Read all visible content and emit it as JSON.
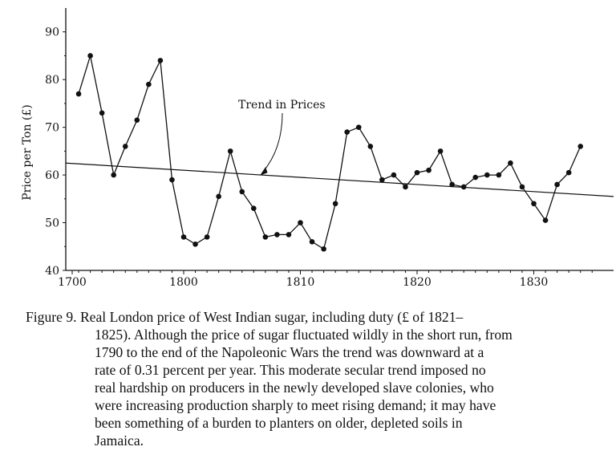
{
  "chart_data": {
    "type": "line",
    "title": "",
    "xlabel": "",
    "ylabel": "Price per Ton (£)",
    "xlim": [
      1700,
      1835
    ],
    "ylim": [
      40,
      95
    ],
    "xticks": [
      1700,
      1800,
      1810,
      1820,
      1830
    ],
    "xtick_labels": [
      "1700",
      "1800",
      "1810",
      "1820",
      "1830"
    ],
    "yticks": [
      40,
      50,
      60,
      70,
      80,
      90
    ],
    "ytick_labels": [
      "40",
      "50",
      "60",
      "70",
      "80",
      "90"
    ],
    "grid": false,
    "series": [
      {
        "name": "",
        "x": [
          1791,
          1792,
          1793,
          1794,
          1795,
          1796,
          1797,
          1798,
          1799,
          1800,
          1801,
          1802,
          1803,
          1804,
          1805,
          1806,
          1807,
          1808,
          1809,
          1810,
          1811,
          1812,
          1813,
          1814,
          1815,
          1816,
          1817,
          1818,
          1819,
          1820,
          1821,
          1822,
          1823,
          1824,
          1825,
          1826,
          1827,
          1828,
          1829,
          1830,
          1831,
          1832,
          1833,
          1834
        ],
        "y": [
          77,
          85,
          73,
          60,
          66,
          71.5,
          79,
          84,
          59,
          47,
          45.5,
          47,
          55.5,
          65,
          56.5,
          53,
          47,
          47.5,
          47.5,
          50,
          46,
          44.5,
          54,
          69,
          70,
          66,
          59,
          60,
          57.5,
          60.5,
          61,
          65,
          58,
          57.5,
          59.5,
          60,
          60,
          62.5,
          57.5,
          54,
          50.5,
          58,
          60.5,
          66
        ]
      },
      {
        "name": "Trend in Prices",
        "x": [
          1790,
          1835
        ],
        "y": [
          62.5,
          55.5
        ]
      }
    ],
    "annotations": [
      {
        "text": "Trend in Prices",
        "points_to": "trend-line"
      }
    ]
  },
  "caption": {
    "label": "Figure 9.",
    "lines": [
      "Real London price of West Indian sugar, including duty (£ of 1821–",
      "1825). Although the price of sugar fluctuated wildly in the short run, from",
      "1790 to the end of the Napoleonic Wars the trend was downward at a",
      "rate of 0.31 percent per year. This moderate secular trend imposed no",
      "real hardship on producers in the newly developed slave colonies, who",
      "were increasing production sharply to meet rising demand; it may have",
      "been something of a burden to planters on older, depleted soils in",
      "Jamaica."
    ]
  }
}
